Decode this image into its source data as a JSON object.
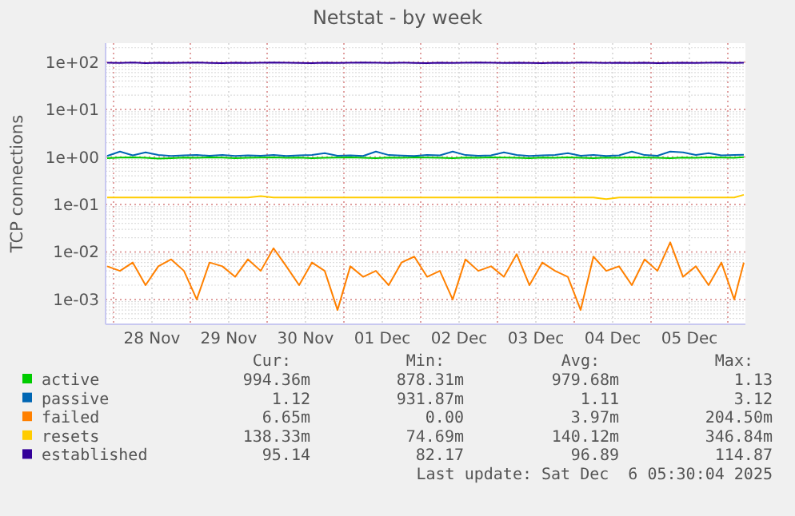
{
  "chart_data": {
    "type": "line",
    "title": "Netstat - by week",
    "ylabel": "TCP connections",
    "log": "y",
    "grid": true,
    "legend": "bottom",
    "marker": "none",
    "line_style": "solid",
    "xlim": [
      "2025-11-27T21:30",
      "2025-12-06T05:30"
    ],
    "xticks": [
      {
        "value": "2025-11-28T00:00",
        "label": null
      },
      {
        "value": "2025-11-28T12:00",
        "label": "28 Nov"
      },
      {
        "value": "2025-11-29T00:00",
        "label": null
      },
      {
        "value": "2025-11-29T12:00",
        "label": "29 Nov"
      },
      {
        "value": "2025-11-30T00:00",
        "label": null
      },
      {
        "value": "2025-11-30T12:00",
        "label": "30 Nov"
      },
      {
        "value": "2025-12-01T00:00",
        "label": null
      },
      {
        "value": "2025-12-01T12:00",
        "label": "01 Dec"
      },
      {
        "value": "2025-12-02T00:00",
        "label": null
      },
      {
        "value": "2025-12-02T12:00",
        "label": "02 Dec"
      },
      {
        "value": "2025-12-03T00:00",
        "label": null
      },
      {
        "value": "2025-12-03T12:00",
        "label": "03 Dec"
      },
      {
        "value": "2025-12-04T00:00",
        "label": null
      },
      {
        "value": "2025-12-04T12:00",
        "label": "04 Dec"
      },
      {
        "value": "2025-12-05T00:00",
        "label": null
      },
      {
        "value": "2025-12-05T12:00",
        "label": "05 Dec"
      },
      {
        "value": "2025-12-06T00:00",
        "label": null
      }
    ],
    "ylim": [
      0.0003,
      250
    ],
    "yticks": [
      {
        "value": 0.001,
        "label": "1e-03"
      },
      {
        "value": 0.01,
        "label": "1e-02"
      },
      {
        "value": 0.1,
        "label": "1e-01"
      },
      {
        "value": 1,
        "label": "1e+00"
      },
      {
        "value": 10,
        "label": "1e+01"
      },
      {
        "value": 100,
        "label": "1e+02"
      }
    ],
    "x": [
      "2025-11-27T22:00",
      "2025-11-28T02:00",
      "2025-11-28T06:00",
      "2025-11-28T10:00",
      "2025-11-28T14:00",
      "2025-11-28T18:00",
      "2025-11-28T22:00",
      "2025-11-29T02:00",
      "2025-11-29T06:00",
      "2025-11-29T10:00",
      "2025-11-29T14:00",
      "2025-11-29T18:00",
      "2025-11-29T22:00",
      "2025-11-30T02:00",
      "2025-11-30T06:00",
      "2025-11-30T10:00",
      "2025-11-30T14:00",
      "2025-11-30T18:00",
      "2025-11-30T22:00",
      "2025-12-01T02:00",
      "2025-12-01T06:00",
      "2025-12-01T10:00",
      "2025-12-01T14:00",
      "2025-12-01T18:00",
      "2025-12-01T22:00",
      "2025-12-02T02:00",
      "2025-12-02T06:00",
      "2025-12-02T10:00",
      "2025-12-02T14:00",
      "2025-12-02T18:00",
      "2025-12-02T22:00",
      "2025-12-03T02:00",
      "2025-12-03T06:00",
      "2025-12-03T10:00",
      "2025-12-03T14:00",
      "2025-12-03T18:00",
      "2025-12-03T22:00",
      "2025-12-04T02:00",
      "2025-12-04T06:00",
      "2025-12-04T10:00",
      "2025-12-04T14:00",
      "2025-12-04T18:00",
      "2025-12-04T22:00",
      "2025-12-05T02:00",
      "2025-12-05T06:00",
      "2025-12-05T10:00",
      "2025-12-05T14:00",
      "2025-12-05T18:00",
      "2025-12-05T22:00",
      "2025-12-06T02:00",
      "2025-12-06T05:00"
    ],
    "series": [
      {
        "name": "active",
        "color": "#00cc00",
        "values": [
          0.95,
          0.97,
          0.98,
          0.96,
          0.93,
          0.95,
          0.97,
          0.96,
          0.98,
          0.97,
          0.95,
          0.96,
          0.97,
          0.98,
          0.96,
          0.97,
          0.95,
          0.96,
          0.97,
          0.98,
          0.96,
          0.95,
          0.97,
          0.96,
          0.98,
          0.97,
          0.96,
          0.95,
          0.97,
          0.96,
          0.98,
          0.97,
          0.96,
          0.95,
          0.97,
          0.96,
          0.98,
          0.96,
          0.95,
          0.97,
          0.96,
          0.98,
          0.97,
          0.96,
          0.95,
          0.97,
          0.96,
          0.98,
          0.97,
          0.96,
          0.99
        ]
      },
      {
        "name": "passive",
        "color": "#0066b3",
        "values": [
          1.05,
          1.3,
          1.08,
          1.25,
          1.1,
          1.05,
          1.08,
          1.1,
          1.06,
          1.1,
          1.05,
          1.08,
          1.06,
          1.1,
          1.05,
          1.08,
          1.1,
          1.2,
          1.06,
          1.08,
          1.05,
          1.3,
          1.1,
          1.07,
          1.05,
          1.1,
          1.08,
          1.3,
          1.1,
          1.06,
          1.08,
          1.25,
          1.1,
          1.05,
          1.08,
          1.1,
          1.2,
          1.06,
          1.1,
          1.05,
          1.08,
          1.3,
          1.1,
          1.06,
          1.3,
          1.25,
          1.1,
          1.2,
          1.08,
          1.1,
          1.12
        ]
      },
      {
        "name": "failed",
        "color": "#ff8000",
        "values": [
          0.005,
          0.004,
          0.006,
          0.002,
          0.005,
          0.007,
          0.004,
          0.001,
          0.006,
          0.005,
          0.003,
          0.007,
          0.004,
          0.012,
          0.005,
          0.002,
          0.006,
          0.004,
          0.0006,
          0.005,
          0.003,
          0.004,
          0.002,
          0.006,
          0.008,
          0.003,
          0.004,
          0.001,
          0.007,
          0.004,
          0.005,
          0.003,
          0.009,
          0.002,
          0.006,
          0.004,
          0.003,
          0.0006,
          0.008,
          0.004,
          0.005,
          0.002,
          0.007,
          0.004,
          0.016,
          0.003,
          0.005,
          0.002,
          0.006,
          0.001,
          0.006
        ]
      },
      {
        "name": "resets",
        "color": "#ffcc00",
        "values": [
          0.14,
          0.14,
          0.14,
          0.14,
          0.14,
          0.14,
          0.14,
          0.14,
          0.14,
          0.14,
          0.14,
          0.14,
          0.15,
          0.14,
          0.14,
          0.14,
          0.14,
          0.14,
          0.14,
          0.14,
          0.14,
          0.14,
          0.14,
          0.14,
          0.14,
          0.14,
          0.14,
          0.14,
          0.14,
          0.14,
          0.14,
          0.14,
          0.14,
          0.14,
          0.14,
          0.14,
          0.14,
          0.14,
          0.14,
          0.13,
          0.14,
          0.14,
          0.14,
          0.14,
          0.14,
          0.14,
          0.14,
          0.14,
          0.14,
          0.14,
          0.16
        ]
      },
      {
        "name": "established",
        "color": "#330099",
        "values": [
          97,
          96,
          98,
          95,
          97,
          96,
          97,
          98,
          96,
          95,
          97,
          96,
          97,
          98,
          97,
          96,
          95,
          97,
          96,
          97,
          98,
          97,
          96,
          97,
          96,
          95,
          97,
          96,
          97,
          98,
          97,
          96,
          97,
          96,
          95,
          97,
          96,
          98,
          97,
          96,
          97,
          96,
          97,
          95,
          96,
          97,
          96,
          97,
          98,
          96,
          97
        ]
      }
    ],
    "annotations": [
      "Cur:",
      "Min:",
      "Avg:",
      "Max:",
      "994.36m",
      "878.31m",
      "979.68m",
      "1.13",
      "1.12",
      "931.87m",
      "1.11",
      "3.12",
      "6.65m",
      "0.00",
      "3.97m",
      "204.50m",
      "138.33m",
      "74.69m",
      "140.12m",
      "346.84m",
      "95.14",
      "82.17",
      "96.89",
      "114.87",
      "Last update: Sat Dec  6 05:30:04 2025"
    ]
  }
}
